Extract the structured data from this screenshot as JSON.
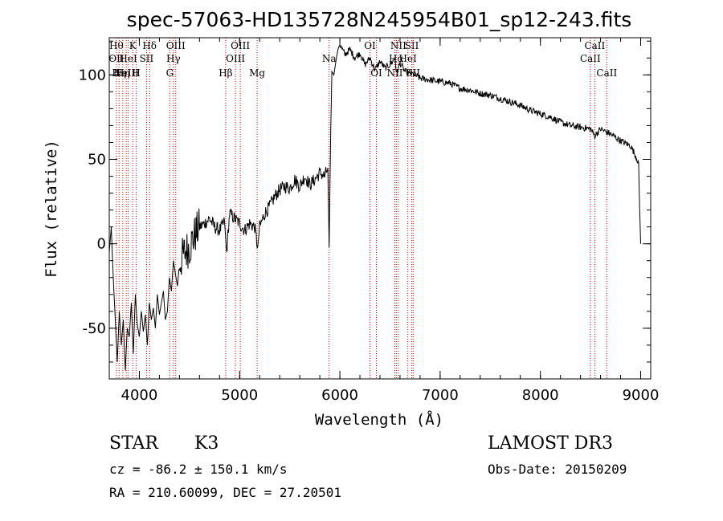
{
  "chart_data": {
    "type": "line",
    "title": "spec-57063-HD135728N245954B01_sp12-243.fits",
    "xlabel": "Wavelength (Å)",
    "ylabel": "Flux (relative)",
    "xlim": [
      3700,
      9100
    ],
    "ylim": [
      -80,
      122
    ],
    "x_ticks": [
      4000,
      5000,
      6000,
      7000,
      8000,
      9000
    ],
    "y_ticks": [
      -50,
      0,
      50,
      100
    ],
    "grid": false,
    "series": [
      {
        "x": [
          3700,
          3720,
          3740,
          3760,
          3780,
          3800,
          3820,
          3840,
          3860,
          3880,
          3900,
          3920,
          3940,
          3960,
          3980,
          4000,
          4020,
          4040,
          4060,
          4080,
          4100,
          4120,
          4140,
          4160,
          4180,
          4200,
          4220,
          4240,
          4260,
          4280,
          4300,
          4320,
          4340,
          4360,
          4380,
          4400,
          4450,
          4500,
          4550,
          4600,
          4650,
          4700,
          4750,
          4800,
          4850,
          4870,
          4900,
          4950,
          5000,
          5050,
          5100,
          5150,
          5180,
          5200,
          5250,
          5300,
          5350,
          5400,
          5450,
          5500,
          5550,
          5600,
          5650,
          5700,
          5750,
          5800,
          5850,
          5880,
          5893,
          5900,
          5910,
          5920,
          5940,
          5960,
          5980,
          6000,
          6050,
          6100,
          6150,
          6200,
          6250,
          6300,
          6350,
          6400,
          6450,
          6500,
          6550,
          6563,
          6600,
          6650,
          6700,
          6750,
          6800,
          6900,
          7000,
          7100,
          7200,
          7300,
          7400,
          7500,
          7600,
          7700,
          7800,
          7900,
          8000,
          8100,
          8200,
          8300,
          8400,
          8500,
          8542,
          8600,
          8662,
          8700,
          8800,
          8900,
          8950,
          8980,
          8990,
          9000
        ],
        "y": [
          -5,
          10,
          -20,
          -45,
          -70,
          -40,
          -60,
          -45,
          -75,
          -50,
          -55,
          -35,
          -65,
          -30,
          -48,
          -55,
          -40,
          -52,
          -42,
          -60,
          -35,
          -45,
          -38,
          -50,
          -30,
          -42,
          -35,
          -28,
          -45,
          -40,
          -20,
          -28,
          -10,
          -18,
          -25,
          -12,
          -5,
          -2,
          5,
          10,
          12,
          15,
          10,
          8,
          13,
          -5,
          18,
          15,
          12,
          8,
          12,
          10,
          -2,
          10,
          18,
          22,
          28,
          32,
          34,
          33,
          38,
          34,
          40,
          35,
          38,
          42,
          40,
          45,
          -2,
          30,
          70,
          102,
          100,
          108,
          115,
          118,
          112,
          115,
          110,
          113,
          106,
          110,
          103,
          108,
          104,
          106,
          110,
          100,
          107,
          102,
          101,
          100,
          98,
          97,
          96,
          95,
          92,
          91,
          89,
          88,
          86,
          84,
          82,
          79,
          77,
          75,
          72,
          70,
          69,
          68,
          64,
          68,
          66,
          65,
          61,
          58,
          52,
          48,
          20,
          0
        ]
      }
    ],
    "line_marks": [
      {
        "wl": 3771,
        "labels": [
          "Hθ",
          "OII"
        ],
        "tiers": [
          0,
          1
        ]
      },
      {
        "wl": 3798,
        "labels": [
          "Hη"
        ],
        "tiers": [
          2
        ]
      },
      {
        "wl": 3835,
        "labels": [
          "Hη"
        ],
        "tiers": [
          2
        ]
      },
      {
        "wl": 3869,
        "labels": [
          "NeIII"
        ],
        "tiers": [
          2
        ]
      },
      {
        "wl": 3889,
        "labels": [
          "HeI"
        ],
        "tiers": [
          1
        ]
      },
      {
        "wl": 3934,
        "labels": [
          "K"
        ],
        "tiers": [
          0
        ]
      },
      {
        "wl": 3969,
        "labels": [
          "H"
        ],
        "tiers": [
          2
        ]
      },
      {
        "wl": 4072,
        "labels": [
          "SII"
        ],
        "tiers": [
          1
        ]
      },
      {
        "wl": 4102,
        "labels": [
          "Hδ"
        ],
        "tiers": [
          0
        ]
      },
      {
        "wl": 4304,
        "labels": [
          "G"
        ],
        "tiers": [
          2
        ]
      },
      {
        "wl": 4340,
        "labels": [
          "Hγ"
        ],
        "tiers": [
          1
        ]
      },
      {
        "wl": 4363,
        "labels": [
          "OIII"
        ],
        "tiers": [
          0
        ]
      },
      {
        "wl": 4861,
        "labels": [
          "Hβ"
        ],
        "tiers": [
          2
        ]
      },
      {
        "wl": 4959,
        "labels": [
          "OIII"
        ],
        "tiers": [
          1
        ]
      },
      {
        "wl": 5007,
        "labels": [
          "OIII"
        ],
        "tiers": [
          0
        ]
      },
      {
        "wl": 5175,
        "labels": [
          "Mg"
        ],
        "tiers": [
          2
        ]
      },
      {
        "wl": 5893,
        "labels": [
          "Na"
        ],
        "tiers": [
          1
        ]
      },
      {
        "wl": 6300,
        "labels": [
          "OI"
        ],
        "tiers": [
          0
        ]
      },
      {
        "wl": 6364,
        "labels": [
          "OI"
        ],
        "tiers": [
          2
        ]
      },
      {
        "wl": 6548,
        "labels": [
          "NII"
        ],
        "tiers": [
          2
        ]
      },
      {
        "wl": 6563,
        "labels": [
          "Hα"
        ],
        "tiers": [
          1
        ]
      },
      {
        "wl": 6583,
        "labels": [
          "NII"
        ],
        "tiers": [
          0
        ]
      },
      {
        "wl": 6678,
        "labels": [
          "HeI"
        ],
        "tiers": [
          1
        ]
      },
      {
        "wl": 6717,
        "labels": [
          "SII"
        ],
        "tiers": [
          0
        ]
      },
      {
        "wl": 6731,
        "labels": [
          "SII"
        ],
        "tiers": [
          2
        ]
      },
      {
        "wl": 8498,
        "labels": [
          "CaII"
        ],
        "tiers": [
          1
        ]
      },
      {
        "wl": 8542,
        "labels": [
          "CaII"
        ],
        "tiers": [
          0
        ]
      },
      {
        "wl": 8662,
        "labels": [
          "CaII"
        ],
        "tiers": [
          2
        ]
      }
    ],
    "colors": {
      "spectrum": "#000000",
      "lines": "#cc0000"
    }
  },
  "info": {
    "object_class": "STAR",
    "subclass": "K3",
    "survey": "LAMOST DR3",
    "velocity": "cz = -86.2 ± 150.1 km/s",
    "obs_date": "Obs-Date: 20150209",
    "coords": "RA = 210.60099, DEC =  27.20501"
  }
}
